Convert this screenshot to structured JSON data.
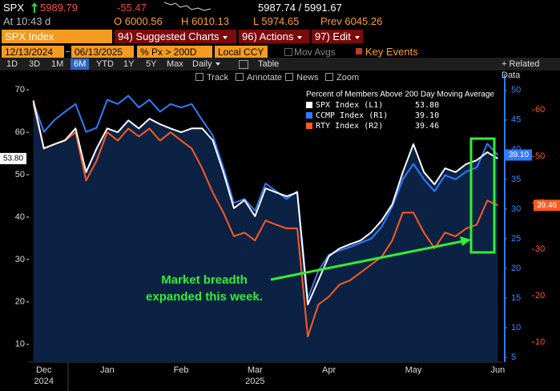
{
  "header": {
    "ticker": "SPX",
    "last": "5989.79",
    "change": "-55.47",
    "bid_ask": "5987.74 / 5991.67",
    "time": "At 10:43 d",
    "open": "O 6000.56",
    "high": "H 6010.13",
    "low": "L 5974.65",
    "prev": "Prev 6045.26"
  },
  "toolbar": {
    "security": "SPX Index",
    "menus": [
      "94) Suggested Charts",
      "96) Actions",
      "97) Edit"
    ],
    "start_date": "12/13/2024",
    "end_date": "06/13/2025",
    "field": "% Px > 200D",
    "currency": "Local CCY",
    "mov_avgs": "Mov Avgs",
    "key_events": "Key Events",
    "periods": [
      "1D",
      "3D",
      "1M",
      "6M",
      "YTD",
      "1Y",
      "5Y",
      "Max"
    ],
    "frequency": "Daily",
    "table": "Table",
    "related": "+ Related Data",
    "tools": [
      "Track",
      "Annotate",
      "News",
      "Zoom"
    ]
  },
  "chart_data": {
    "type": "line",
    "legend_title": "Percent of Members Above 200 Day Moving Average",
    "categories": [
      null,
      "Dec",
      null,
      null,
      null,
      null,
      null,
      "Jan",
      null,
      null,
      null,
      null,
      null,
      null,
      "Feb",
      null,
      null,
      null,
      null,
      null,
      null,
      "Mar",
      null,
      null,
      null,
      null,
      null,
      null,
      "Apr",
      null,
      null,
      null,
      null,
      null,
      null,
      null,
      "May",
      null,
      null,
      null,
      null,
      null,
      null,
      null,
      "Jun"
    ],
    "category_years": [
      null,
      "2024",
      null,
      null,
      null,
      null,
      null,
      null,
      null,
      null,
      null,
      null,
      null,
      null,
      null,
      null,
      null,
      null,
      null,
      null,
      null,
      "2025",
      null,
      null,
      null,
      null,
      null,
      null,
      null,
      null,
      null,
      null,
      null,
      null,
      null,
      null,
      null,
      null,
      null,
      null,
      null,
      null,
      null,
      null,
      null
    ],
    "series": [
      {
        "name": "SPX Index (L1)",
        "color": "#ffffff",
        "axis": "y",
        "values": [
          67.5,
          56.2,
          57.2,
          58.1,
          60.9,
          50.6,
          56.2,
          60.9,
          60.0,
          62.8,
          60.9,
          63.2,
          61.9,
          60.9,
          60.0,
          60.9,
          60.9,
          58.1,
          50.6,
          42.1,
          44.0,
          40.2,
          46.8,
          45.8,
          44.9,
          45.8,
          19.4,
          25.1,
          30.8,
          32.6,
          33.6,
          34.5,
          36.4,
          39.2,
          43.0,
          50.6,
          57.2,
          50.6,
          47.7,
          51.5,
          50.6,
          52.5,
          53.4,
          55.3,
          53.8
        ],
        "value_labels": [
          null,
          null,
          null,
          null,
          null,
          null,
          null,
          null,
          null,
          null,
          null,
          null,
          null,
          null,
          null,
          null,
          null,
          null,
          null,
          null,
          null,
          null,
          null,
          null,
          null,
          null,
          null,
          null,
          null,
          null,
          null,
          null,
          null,
          null,
          null,
          null,
          null,
          null,
          null,
          null,
          null,
          null,
          null,
          null,
          "53.80"
        ]
      },
      {
        "name": "CCMP Index (R1)",
        "color": "#2f7bff",
        "axis": "y2",
        "values": [
          48.0,
          43.0,
          45.0,
          46.4,
          47.7,
          43.0,
          43.7,
          48.4,
          47.7,
          49.1,
          47.1,
          48.4,
          46.4,
          47.7,
          47.1,
          47.7,
          45.0,
          42.4,
          37.0,
          31.0,
          31.7,
          29.7,
          34.3,
          33.0,
          31.7,
          33.0,
          14.9,
          19.6,
          22.3,
          23.0,
          23.6,
          24.3,
          25.0,
          27.0,
          30.4,
          35.0,
          37.6,
          35.0,
          33.0,
          35.7,
          35.0,
          36.3,
          37.0,
          41.0,
          39.1
        ],
        "value_labels": [
          null,
          null,
          null,
          null,
          null,
          null,
          null,
          null,
          null,
          null,
          null,
          null,
          null,
          null,
          null,
          null,
          null,
          null,
          null,
          null,
          null,
          null,
          null,
          null,
          null,
          null,
          null,
          null,
          null,
          null,
          null,
          null,
          null,
          null,
          null,
          null,
          null,
          null,
          null,
          null,
          null,
          null,
          null,
          null,
          "39.10"
        ]
      },
      {
        "name": "RTY Index (R2)",
        "color": "#ff5a1f",
        "axis": "y3",
        "values": [
          61.2,
          51.7,
          52.6,
          53.4,
          55.2,
          44.8,
          49.1,
          55.2,
          53.4,
          56.0,
          54.3,
          56.0,
          53.4,
          55.2,
          53.4,
          51.7,
          47.4,
          42.2,
          37.9,
          32.8,
          33.6,
          31.9,
          36.2,
          35.3,
          34.5,
          34.5,
          11.2,
          18.1,
          19.8,
          22.4,
          23.3,
          25.0,
          26.7,
          28.4,
          31.9,
          37.9,
          37.9,
          33.6,
          30.2,
          33.6,
          32.8,
          34.5,
          35.3,
          40.5,
          39.46
        ],
        "value_labels": [
          null,
          null,
          null,
          null,
          null,
          null,
          null,
          null,
          null,
          null,
          null,
          null,
          null,
          null,
          null,
          null,
          null,
          null,
          null,
          null,
          null,
          null,
          null,
          null,
          null,
          null,
          null,
          null,
          null,
          null,
          null,
          null,
          null,
          null,
          null,
          null,
          null,
          null,
          null,
          null,
          null,
          null,
          null,
          null,
          "39.46"
        ]
      }
    ],
    "ylim": [
      5.8,
      73.8
    ],
    "yticks": [
      10,
      20,
      30,
      40,
      50,
      60,
      70
    ],
    "y2lim": [
      4.2,
      52.8
    ],
    "y2ticks": [
      5,
      10,
      15,
      20,
      25,
      30,
      35,
      40,
      45,
      50
    ],
    "y3lim": [
      5.7,
      67.8
    ],
    "y3ticks": [
      10,
      20,
      30,
      40,
      50,
      60
    ],
    "grid": false,
    "area_fill": "#0c2244",
    "annotation": {
      "lines": [
        "Market breadth",
        "expanded this week."
      ],
      "color": "#33ee33"
    }
  }
}
